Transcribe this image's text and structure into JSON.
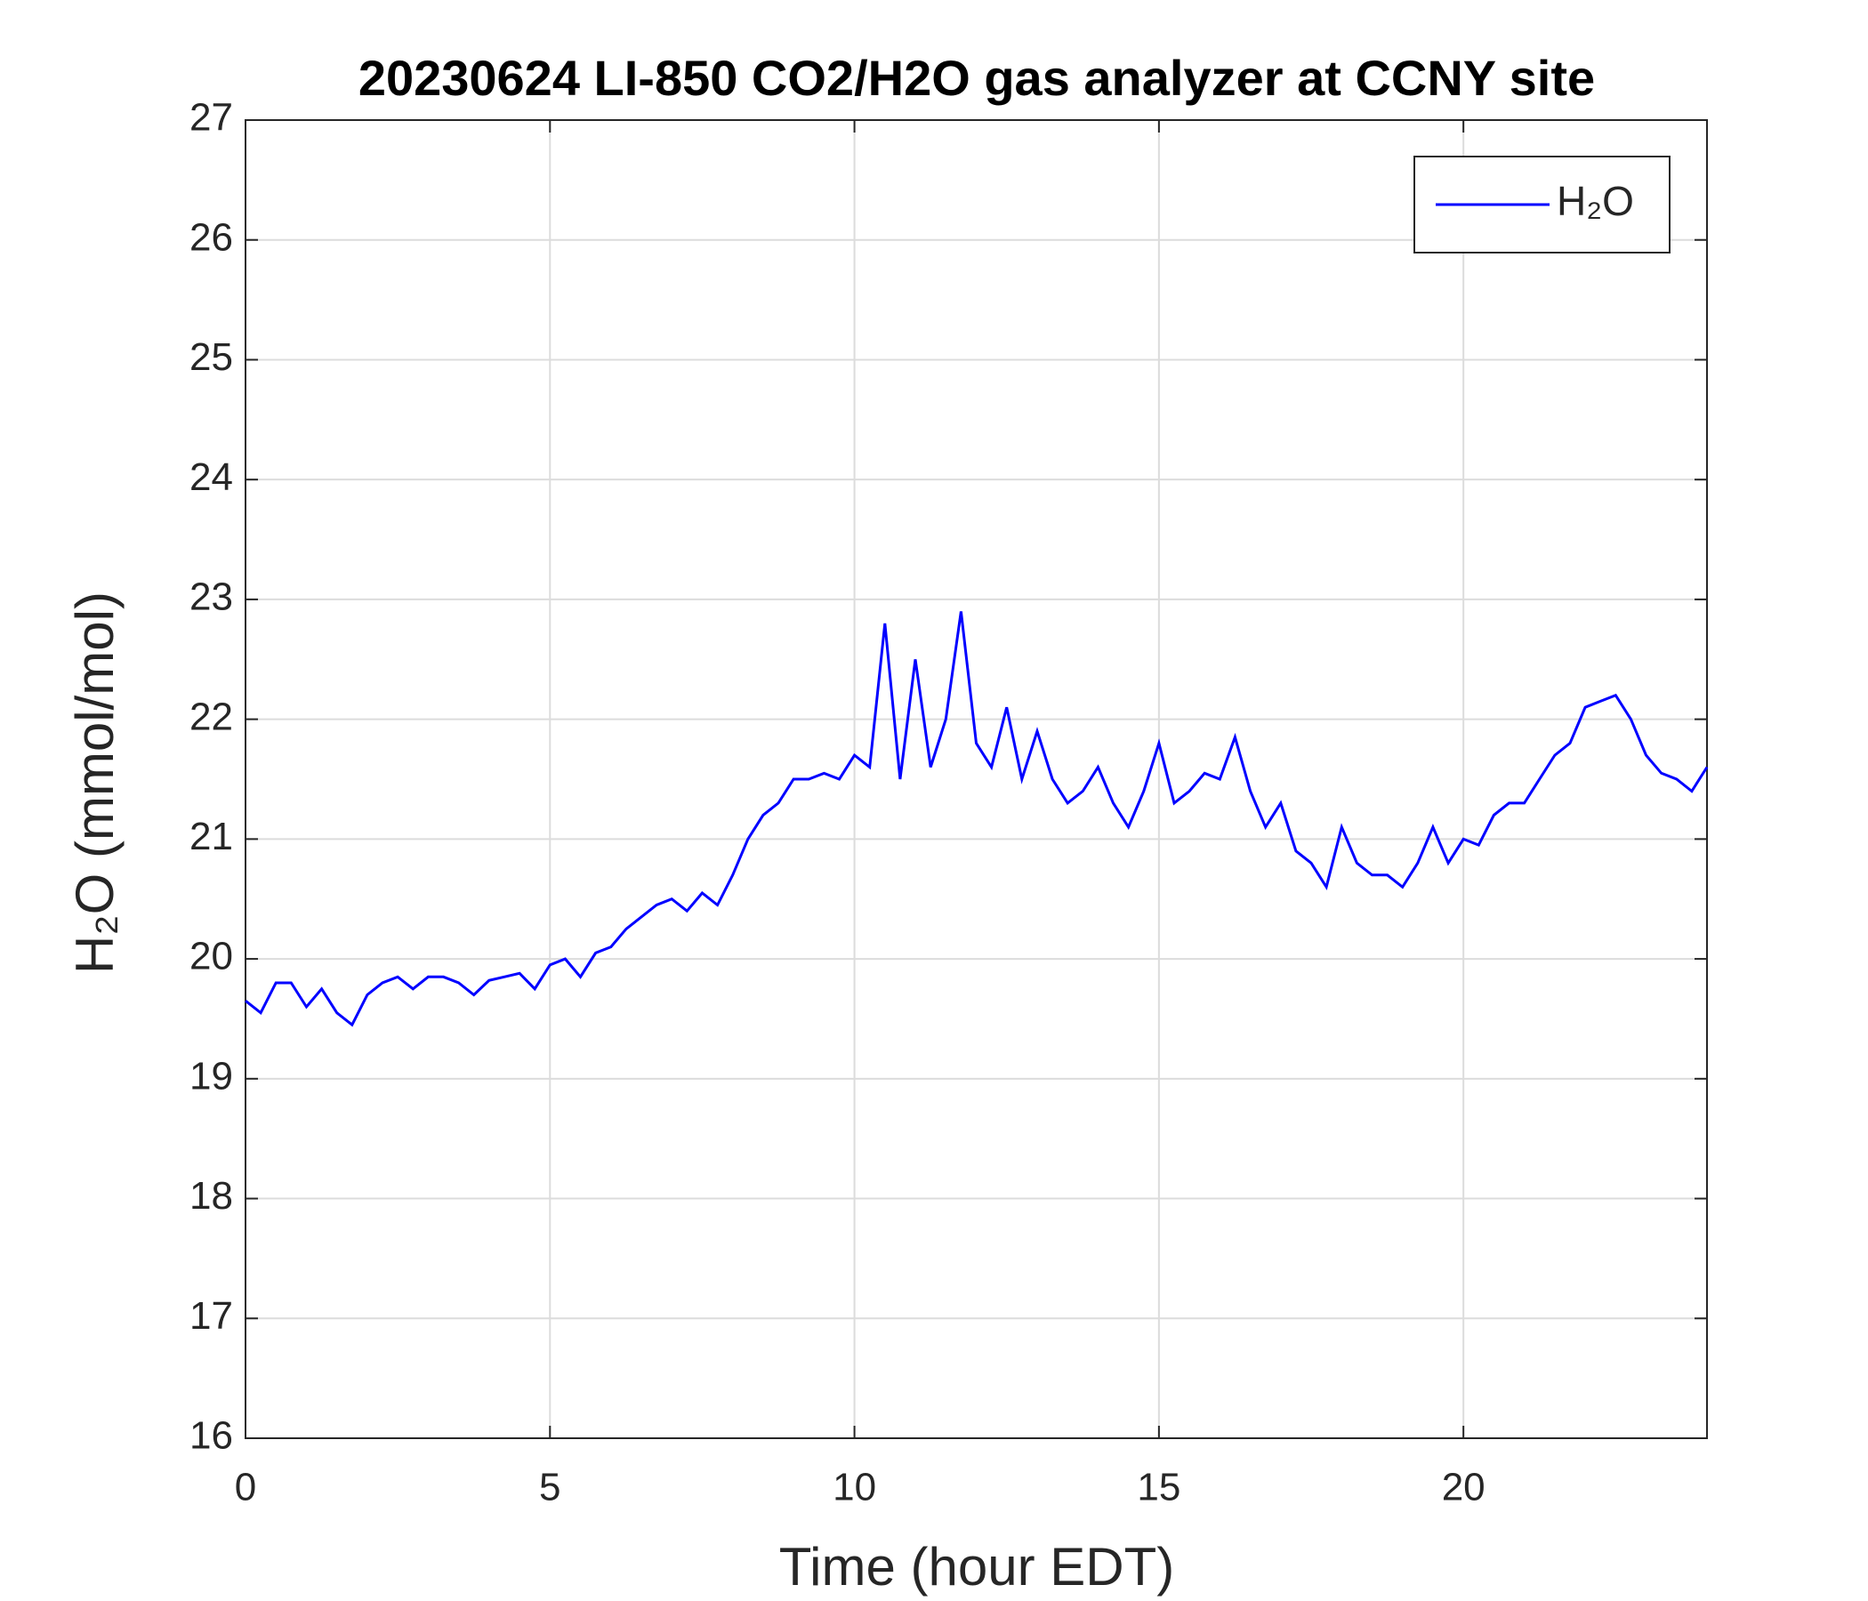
{
  "chart_data": {
    "type": "line",
    "title": "20230624 LI-850 CO2/H2O gas analyzer at CCNY site",
    "x_label": "Time (hour EDT)",
    "y_label": "H₂O (mmol/mol)",
    "x": [
      0,
      0.25,
      0.5,
      0.75,
      1,
      1.25,
      1.5,
      1.75,
      2,
      2.25,
      2.5,
      2.75,
      3,
      3.25,
      3.5,
      3.75,
      4,
      4.25,
      4.5,
      4.75,
      5,
      5.25,
      5.5,
      5.75,
      6,
      6.25,
      6.5,
      6.75,
      7,
      7.25,
      7.5,
      7.75,
      8,
      8.25,
      8.5,
      8.75,
      9,
      9.25,
      9.5,
      9.75,
      10,
      10.25,
      10.5,
      10.75,
      11,
      11.25,
      11.5,
      11.75,
      12,
      12.25,
      12.5,
      12.75,
      13,
      13.25,
      13.5,
      13.75,
      14,
      14.25,
      14.5,
      14.75,
      15,
      15.25,
      15.5,
      15.75,
      16,
      16.25,
      16.5,
      16.75,
      17,
      17.25,
      17.5,
      17.75,
      18,
      18.25,
      18.5,
      18.75,
      19,
      19.25,
      19.5,
      19.75,
      20,
      20.25,
      20.5,
      20.75,
      21,
      21.25,
      21.5,
      21.75,
      22,
      22.25,
      22.5,
      22.75,
      23,
      23.25,
      23.5,
      23.75,
      24
    ],
    "series": [
      {
        "name": "H₂O",
        "color": "#0000ff",
        "values": [
          19.65,
          19.55,
          19.8,
          19.8,
          19.6,
          19.75,
          19.55,
          19.45,
          19.7,
          19.8,
          19.85,
          19.75,
          19.85,
          19.85,
          19.8,
          19.7,
          19.82,
          19.85,
          19.88,
          19.75,
          19.95,
          20.0,
          19.85,
          20.05,
          20.1,
          20.25,
          20.35,
          20.45,
          20.5,
          20.4,
          20.55,
          20.45,
          20.7,
          21.0,
          21.2,
          21.3,
          21.5,
          21.5,
          21.55,
          21.5,
          21.7,
          21.6,
          22.8,
          21.5,
          22.5,
          21.6,
          22.0,
          22.9,
          21.8,
          21.6,
          22.1,
          21.5,
          21.9,
          21.5,
          21.3,
          21.4,
          21.6,
          21.3,
          21.1,
          21.4,
          21.8,
          21.3,
          21.4,
          21.55,
          21.5,
          21.85,
          21.4,
          21.1,
          21.3,
          20.9,
          20.8,
          20.6,
          21.1,
          20.8,
          20.7,
          20.7,
          20.6,
          20.8,
          21.1,
          20.8,
          21.0,
          20.95,
          21.2,
          21.3,
          21.3,
          21.5,
          21.7,
          21.8,
          22.1,
          22.15,
          22.2,
          22.0,
          21.7,
          21.55,
          21.5,
          21.4,
          21.6
        ]
      }
    ],
    "xlim": [
      0,
      24
    ],
    "xticks": [
      0,
      5,
      10,
      15,
      20
    ],
    "ylim": [
      16,
      27
    ],
    "yticks": [
      16,
      17,
      18,
      19,
      20,
      21,
      22,
      23,
      24,
      25,
      26,
      27
    ],
    "grid": true,
    "legend": "upper right"
  }
}
